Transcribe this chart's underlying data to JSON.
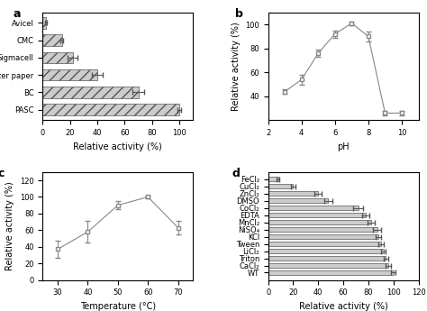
{
  "panel_a": {
    "categories": [
      "PASC",
      "BC",
      "Filter paper",
      "Sigmacell",
      "CMC",
      "Avicel"
    ],
    "values": [
      100,
      70,
      40,
      22,
      14,
      2.5
    ],
    "errors": [
      1.5,
      4.5,
      4.0,
      3.5,
      1.0,
      0.5
    ],
    "xlabel": "Relative activity (%)",
    "xlim": [
      0,
      110
    ],
    "xticks": [
      0.0,
      20.0,
      40.0,
      60.0,
      80.0,
      100.0
    ]
  },
  "panel_b": {
    "x": [
      3,
      4,
      5,
      6,
      7,
      8,
      9,
      10
    ],
    "y": [
      44,
      54,
      76,
      92,
      101,
      90,
      26,
      26
    ],
    "yerr": [
      2,
      4,
      3,
      3,
      1.5,
      4,
      2,
      2
    ],
    "xlabel": "pH",
    "ylabel": "Relative activity (%)",
    "xlim": [
      2,
      11
    ],
    "ylim": [
      20,
      110
    ],
    "xticks": [
      2,
      4,
      6,
      8,
      10
    ],
    "yticks": [
      40,
      60,
      80,
      100
    ]
  },
  "panel_c": {
    "x": [
      30,
      40,
      50,
      60,
      70
    ],
    "y": [
      37,
      58,
      90,
      100,
      63
    ],
    "yerr": [
      10,
      13,
      5,
      2,
      8
    ],
    "xlabel": "Temperature (°C)",
    "ylabel": "Relative activity (%)",
    "xlim": [
      25,
      75
    ],
    "ylim": [
      0,
      130
    ],
    "xticks": [
      30.0,
      40.0,
      50.0,
      60.0,
      70.0
    ],
    "yticks": [
      0,
      20,
      40,
      60,
      80,
      100,
      120
    ]
  },
  "panel_d": {
    "categories": [
      "WT",
      "CaCl₂",
      "Triton",
      "LiCl₂",
      "Tween",
      "KCl",
      "NiSO₄",
      "MnCl₂",
      "EDTA",
      "CoCl₂",
      "DMSO",
      "ZnCl₂",
      "CuCl₂",
      "FeCl₂"
    ],
    "values": [
      100,
      96,
      94,
      92,
      90,
      88,
      87,
      82,
      78,
      72,
      48,
      40,
      20,
      8
    ],
    "errors": [
      2,
      2,
      2,
      2,
      2,
      2,
      3,
      3,
      3,
      4,
      3,
      3,
      2,
      1
    ],
    "xlabel": "Relative activity (%)",
    "xlim": [
      0,
      120
    ],
    "xticks": [
      0.0,
      20.0,
      40.0,
      60.0,
      80.0,
      100.0,
      120.0
    ]
  },
  "label_fontsize": 7,
  "tick_fontsize": 6,
  "marker": "s",
  "marker_size": 3.5,
  "line_color": "#888888",
  "bar_color_hatch": "#cccccc",
  "bar_color_plain": "#cccccc",
  "bar_hatch": "///",
  "bar_edge_color": "#555555"
}
